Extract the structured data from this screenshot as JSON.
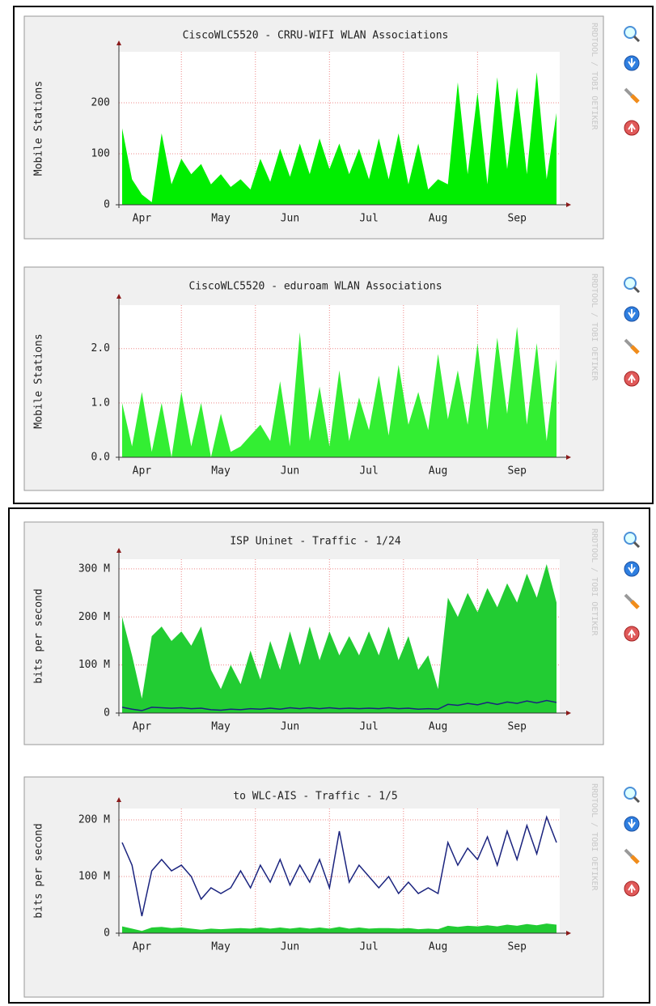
{
  "chart_data": [
    {
      "type": "area",
      "title": "CiscoWLC5520 -  CRRU-WIFI  WLAN Associations",
      "y_label": "Mobile Stations",
      "credit": "RRDTOOL / TOBI OETIKER",
      "categories": [
        null,
        null,
        "Apr",
        null,
        null,
        null,
        null,
        null,
        null,
        null,
        "May",
        null,
        null,
        null,
        null,
        null,
        null,
        "Jun",
        null,
        null,
        null,
        null,
        null,
        null,
        null,
        "Jul",
        null,
        null,
        null,
        null,
        null,
        null,
        "Aug",
        null,
        null,
        null,
        null,
        null,
        null,
        null,
        "Sep",
        null,
        null,
        null,
        null
      ],
      "values": [
        150,
        50,
        20,
        5,
        140,
        40,
        90,
        60,
        80,
        40,
        60,
        35,
        50,
        30,
        90,
        45,
        110,
        55,
        120,
        60,
        130,
        70,
        120,
        60,
        110,
        50,
        130,
        50,
        140,
        40,
        120,
        30,
        50,
        40,
        240,
        60,
        220,
        40,
        250,
        70,
        230,
        60,
        260,
        50,
        180
      ],
      "color": "#00ee00",
      "ylim": [
        0,
        300
      ],
      "yticks": [
        0,
        100,
        200
      ],
      "grid": true
    },
    {
      "type": "area",
      "title": "CiscoWLC5520 -  eduroam  WLAN Associations",
      "y_label": "Mobile Stations",
      "credit": "RRDTOOL / TOBI OETIKER",
      "categories": [
        null,
        null,
        "Apr",
        null,
        null,
        null,
        null,
        null,
        null,
        null,
        "May",
        null,
        null,
        null,
        null,
        null,
        null,
        "Jun",
        null,
        null,
        null,
        null,
        null,
        null,
        null,
        "Jul",
        null,
        null,
        null,
        null,
        null,
        null,
        "Aug",
        null,
        null,
        null,
        null,
        null,
        null,
        null,
        "Sep",
        null,
        null,
        null,
        null
      ],
      "values": [
        1.0,
        0.2,
        1.2,
        0.1,
        1.0,
        0,
        1.2,
        0.2,
        1.0,
        0,
        0.8,
        0.1,
        0.2,
        0.4,
        0.6,
        0.3,
        1.4,
        0.2,
        2.3,
        0.3,
        1.3,
        0.2,
        1.6,
        0.3,
        1.1,
        0.5,
        1.5,
        0.4,
        1.7,
        0.6,
        1.2,
        0.5,
        1.9,
        0.7,
        1.6,
        0.6,
        2.1,
        0.5,
        2.2,
        0.8,
        2.4,
        0.6,
        2.1,
        0.3,
        1.8
      ],
      "color": "#33ee33",
      "ylim": [
        0,
        2.8
      ],
      "yticks": [
        {
          "value": 0,
          "label": "0.0"
        },
        {
          "value": 1,
          "label": "1.0"
        },
        {
          "value": 2,
          "label": "2.0"
        }
      ],
      "grid": true
    },
    {
      "type": "line",
      "title": "ISP Uninet - Traffic - 1/24",
      "y_label": "bits per second",
      "credit": "RRDTOOL / TOBI OETIKER",
      "categories": [
        null,
        null,
        "Apr",
        null,
        null,
        null,
        null,
        null,
        null,
        null,
        "May",
        null,
        null,
        null,
        null,
        null,
        null,
        "Jun",
        null,
        null,
        null,
        null,
        null,
        null,
        null,
        "Jul",
        null,
        null,
        null,
        null,
        null,
        null,
        "Aug",
        null,
        null,
        null,
        null,
        null,
        null,
        null,
        "Sep",
        null,
        null,
        null,
        null
      ],
      "series": [
        {
          "color": "#22cc33",
          "area": true,
          "values": [
            200000000.0,
            120000000.0,
            30000000.0,
            160000000.0,
            180000000.0,
            150000000.0,
            170000000.0,
            140000000.0,
            180000000.0,
            90000000.0,
            50000000.0,
            100000000.0,
            60000000.0,
            130000000.0,
            70000000.0,
            150000000.0,
            90000000.0,
            170000000.0,
            100000000.0,
            180000000.0,
            110000000.0,
            170000000.0,
            120000000.0,
            160000000.0,
            120000000.0,
            170000000.0,
            120000000.0,
            180000000.0,
            110000000.0,
            160000000.0,
            90000000.0,
            120000000.0,
            50000000.0,
            240000000.0,
            200000000.0,
            250000000.0,
            210000000.0,
            260000000.0,
            220000000.0,
            270000000.0,
            230000000.0,
            290000000.0,
            240000000.0,
            310000000.0,
            230000000.0
          ]
        },
        {
          "color": "#1a237e",
          "area": false,
          "values": [
            12000000.0,
            8000000.0,
            5000000.0,
            12000000.0,
            11000000.0,
            10000000.0,
            11000000.0,
            9000000.0,
            10000000.0,
            7000000.0,
            6000000.0,
            8000000.0,
            7000000.0,
            9000000.0,
            8000000.0,
            10000000.0,
            8000000.0,
            11000000.0,
            9000000.0,
            11000000.0,
            9000000.0,
            11000000.0,
            9000000.0,
            10000000.0,
            9000000.0,
            10000000.0,
            9000000.0,
            11000000.0,
            9000000.0,
            10000000.0,
            8000000.0,
            9000000.0,
            8000000.0,
            18000000.0,
            16000000.0,
            20000000.0,
            17000000.0,
            22000000.0,
            18000000.0,
            23000000.0,
            20000000.0,
            25000000.0,
            21000000.0,
            26000000.0,
            22000000.0
          ]
        }
      ],
      "ylim": [
        0,
        320000000
      ],
      "yticks": [
        0,
        {
          "value": 100000000,
          "label": "100 M"
        },
        {
          "value": 200000000,
          "label": "200 M"
        },
        {
          "value": 300000000,
          "label": "300 M"
        }
      ],
      "grid": true
    },
    {
      "type": "line",
      "title": "to WLC-AIS - Traffic - 1/5",
      "y_label": "bits per second",
      "credit": "RRDTOOL / TOBI OETIKER",
      "categories": [
        null,
        null,
        "Apr",
        null,
        null,
        null,
        null,
        null,
        null,
        null,
        "May",
        null,
        null,
        null,
        null,
        null,
        null,
        "Jun",
        null,
        null,
        null,
        null,
        null,
        null,
        null,
        "Jul",
        null,
        null,
        null,
        null,
        null,
        null,
        "Aug",
        null,
        null,
        null,
        null,
        null,
        null,
        null,
        "Sep",
        null,
        null,
        null,
        null
      ],
      "series": [
        {
          "color": "#22cc33",
          "area": true,
          "values": [
            12000000.0,
            8000000.0,
            4000000.0,
            10000000.0,
            11000000.0,
            9000000.0,
            10000000.0,
            8000000.0,
            6000000.0,
            8000000.0,
            7000000.0,
            8000000.0,
            9000000.0,
            8000000.0,
            10000000.0,
            8000000.0,
            10000000.0,
            8000000.0,
            10000000.0,
            8000000.0,
            10000000.0,
            8000000.0,
            11000000.0,
            8000000.0,
            10000000.0,
            8000000.0,
            9000000.0,
            9000000.0,
            8000000.0,
            9000000.0,
            7000000.0,
            8000000.0,
            7000000.0,
            13000000.0,
            11000000.0,
            13000000.0,
            12000000.0,
            14000000.0,
            12000000.0,
            15000000.0,
            13000000.0,
            16000000.0,
            14000000.0,
            17000000.0,
            15000000.0
          ]
        },
        {
          "color": "#1a237e",
          "area": false,
          "values": [
            160000000.0,
            120000000.0,
            30000000.0,
            110000000.0,
            130000000.0,
            110000000.0,
            120000000.0,
            100000000.0,
            60000000.0,
            80000000.0,
            70000000.0,
            80000000.0,
            110000000.0,
            80000000.0,
            120000000.0,
            90000000.0,
            130000000.0,
            85000000.0,
            120000000.0,
            90000000.0,
            130000000.0,
            80000000.0,
            180000000.0,
            90000000.0,
            120000000.0,
            100000000.0,
            80000000.0,
            100000000.0,
            70000000.0,
            90000000.0,
            70000000.0,
            80000000.0,
            70000000.0,
            160000000.0,
            120000000.0,
            150000000.0,
            130000000.0,
            170000000.0,
            120000000.0,
            180000000.0,
            130000000.0,
            190000000.0,
            140000000.0,
            205000000.0,
            160000000.0
          ]
        }
      ],
      "ylim": [
        0,
        220000000
      ],
      "yticks": [
        0,
        {
          "value": 100000000,
          "label": "100 M"
        },
        {
          "value": 200000000,
          "label": "200 M"
        }
      ],
      "grid": true
    }
  ]
}
